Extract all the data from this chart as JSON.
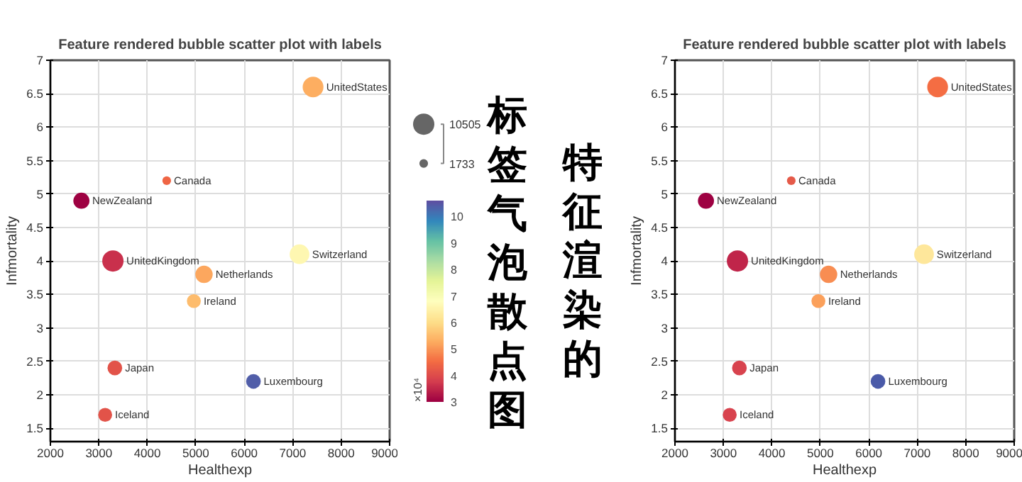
{
  "chart_data": [
    {
      "type": "bubble",
      "title": "Feature rendered bubble scatter plot with labels",
      "xlabel": "Healthexp",
      "ylabel": "Infmortality",
      "series": [
        {
          "name": "Canada",
          "x": [
            4400
          ],
          "values": [
            5.2
          ],
          "sizes": [
            1733
          ],
          "cvalues": [
            4.4
          ]
        },
        {
          "name": "NewZealand",
          "x": [
            2640
          ],
          "values": [
            4.9
          ],
          "sizes": [
            6000
          ],
          "cvalues": [
            3.0
          ]
        },
        {
          "name": "UnitedKingdom",
          "x": [
            3290
          ],
          "values": [
            4.0
          ],
          "sizes": [
            10505
          ],
          "cvalues": [
            3.6
          ]
        },
        {
          "name": "UnitedStates",
          "x": [
            7420
          ],
          "values": [
            6.6
          ],
          "sizes": [
            10000
          ],
          "cvalues": [
            5.3
          ]
        },
        {
          "name": "Switzerland",
          "x": [
            7140
          ],
          "values": [
            4.1
          ],
          "sizes": [
            9000
          ],
          "cvalues": [
            6.6
          ]
        },
        {
          "name": "Netherlands",
          "x": [
            5170
          ],
          "values": [
            3.8
          ],
          "sizes": [
            7000
          ],
          "cvalues": [
            5.2
          ]
        },
        {
          "name": "Ireland",
          "x": [
            4960
          ],
          "values": [
            3.4
          ],
          "sizes": [
            4500
          ],
          "cvalues": [
            5.5
          ]
        },
        {
          "name": "Japan",
          "x": [
            3330
          ],
          "values": [
            2.4
          ],
          "sizes": [
            5000
          ],
          "cvalues": [
            4.1
          ]
        },
        {
          "name": "Luxembourg",
          "x": [
            6190
          ],
          "values": [
            2.2
          ],
          "sizes": [
            5000
          ],
          "cvalues": [
            10.4
          ]
        },
        {
          "name": "Iceland",
          "x": [
            3130
          ],
          "values": [
            1.7
          ],
          "sizes": [
            4500
          ],
          "cvalues": [
            4.1
          ]
        }
      ],
      "clim": [
        3,
        10.6
      ],
      "cticks": [
        3,
        4,
        5,
        6,
        7,
        8,
        9,
        10
      ],
      "clabel": "×10⁴",
      "size_legend": [
        10505,
        1733
      ],
      "annotations": [
        "特征渲染的",
        "标签气泡散点图"
      ],
      "xlim": [
        2000,
        9000
      ],
      "xticks": [
        2000,
        3000,
        4000,
        5000,
        6000,
        7000,
        8000,
        9000
      ],
      "ylim": [
        1.3,
        7
      ],
      "yticks": [
        1.5,
        2,
        2.5,
        3,
        3.5,
        4,
        4.5,
        5,
        5.5,
        6,
        6.5,
        7
      ],
      "grid": true
    },
    {
      "type": "bubble",
      "title": "Feature rendered bubble scatter plot with labels",
      "xlabel": "Healthexp",
      "ylabel": "Infmortality",
      "series": [
        {
          "name": "Canada",
          "x": [
            4400
          ],
          "values": [
            5.2
          ],
          "sizes": [
            0.165
          ],
          "color": "#e55a49"
        },
        {
          "name": "NewZealand",
          "x": [
            2640
          ],
          "values": [
            4.9
          ],
          "sizes": [
            0.571
          ],
          "color": "#9e0142"
        },
        {
          "name": "UnitedKingdom",
          "x": [
            3290
          ],
          "values": [
            4.0
          ],
          "sizes": [
            1
          ],
          "color": "#c0254a"
        },
        {
          "name": "UnitedStates",
          "x": [
            7420
          ],
          "values": [
            6.6
          ],
          "sizes": [
            0.952
          ],
          "color": "#f46d43"
        },
        {
          "name": "Switzerland",
          "x": [
            7140
          ],
          "values": [
            4.1
          ],
          "sizes": [
            0.857
          ],
          "color": "#fee79b"
        },
        {
          "name": "Netherlands",
          "x": [
            5170
          ],
          "values": [
            3.8
          ],
          "sizes": [
            0.666
          ],
          "color": "#f88d52"
        },
        {
          "name": "Ireland",
          "x": [
            4960
          ],
          "values": [
            3.4
          ],
          "sizes": [
            0.428
          ],
          "color": "#fba05b"
        },
        {
          "name": "Japan",
          "x": [
            3330
          ],
          "values": [
            2.4
          ],
          "sizes": [
            0.476
          ],
          "color": "#d8434e"
        },
        {
          "name": "Luxembourg",
          "x": [
            6190
          ],
          "values": [
            2.2
          ],
          "sizes": [
            0.476
          ],
          "color": "#4a5aa8"
        },
        {
          "name": "Iceland",
          "x": [
            3130
          ],
          "values": [
            1.7
          ],
          "sizes": [
            0.428
          ],
          "color": "#d8434e"
        }
      ],
      "xlim": [
        2000,
        9000
      ],
      "xticks": [
        2000,
        3000,
        4000,
        5000,
        6000,
        7000,
        8000,
        9000
      ],
      "ylim": [
        1.3,
        7
      ],
      "yticks": [
        1.5,
        2,
        2.5,
        3,
        3.5,
        4,
        4.5,
        5,
        5.5,
        6,
        6.5,
        7
      ],
      "grid": true
    }
  ]
}
